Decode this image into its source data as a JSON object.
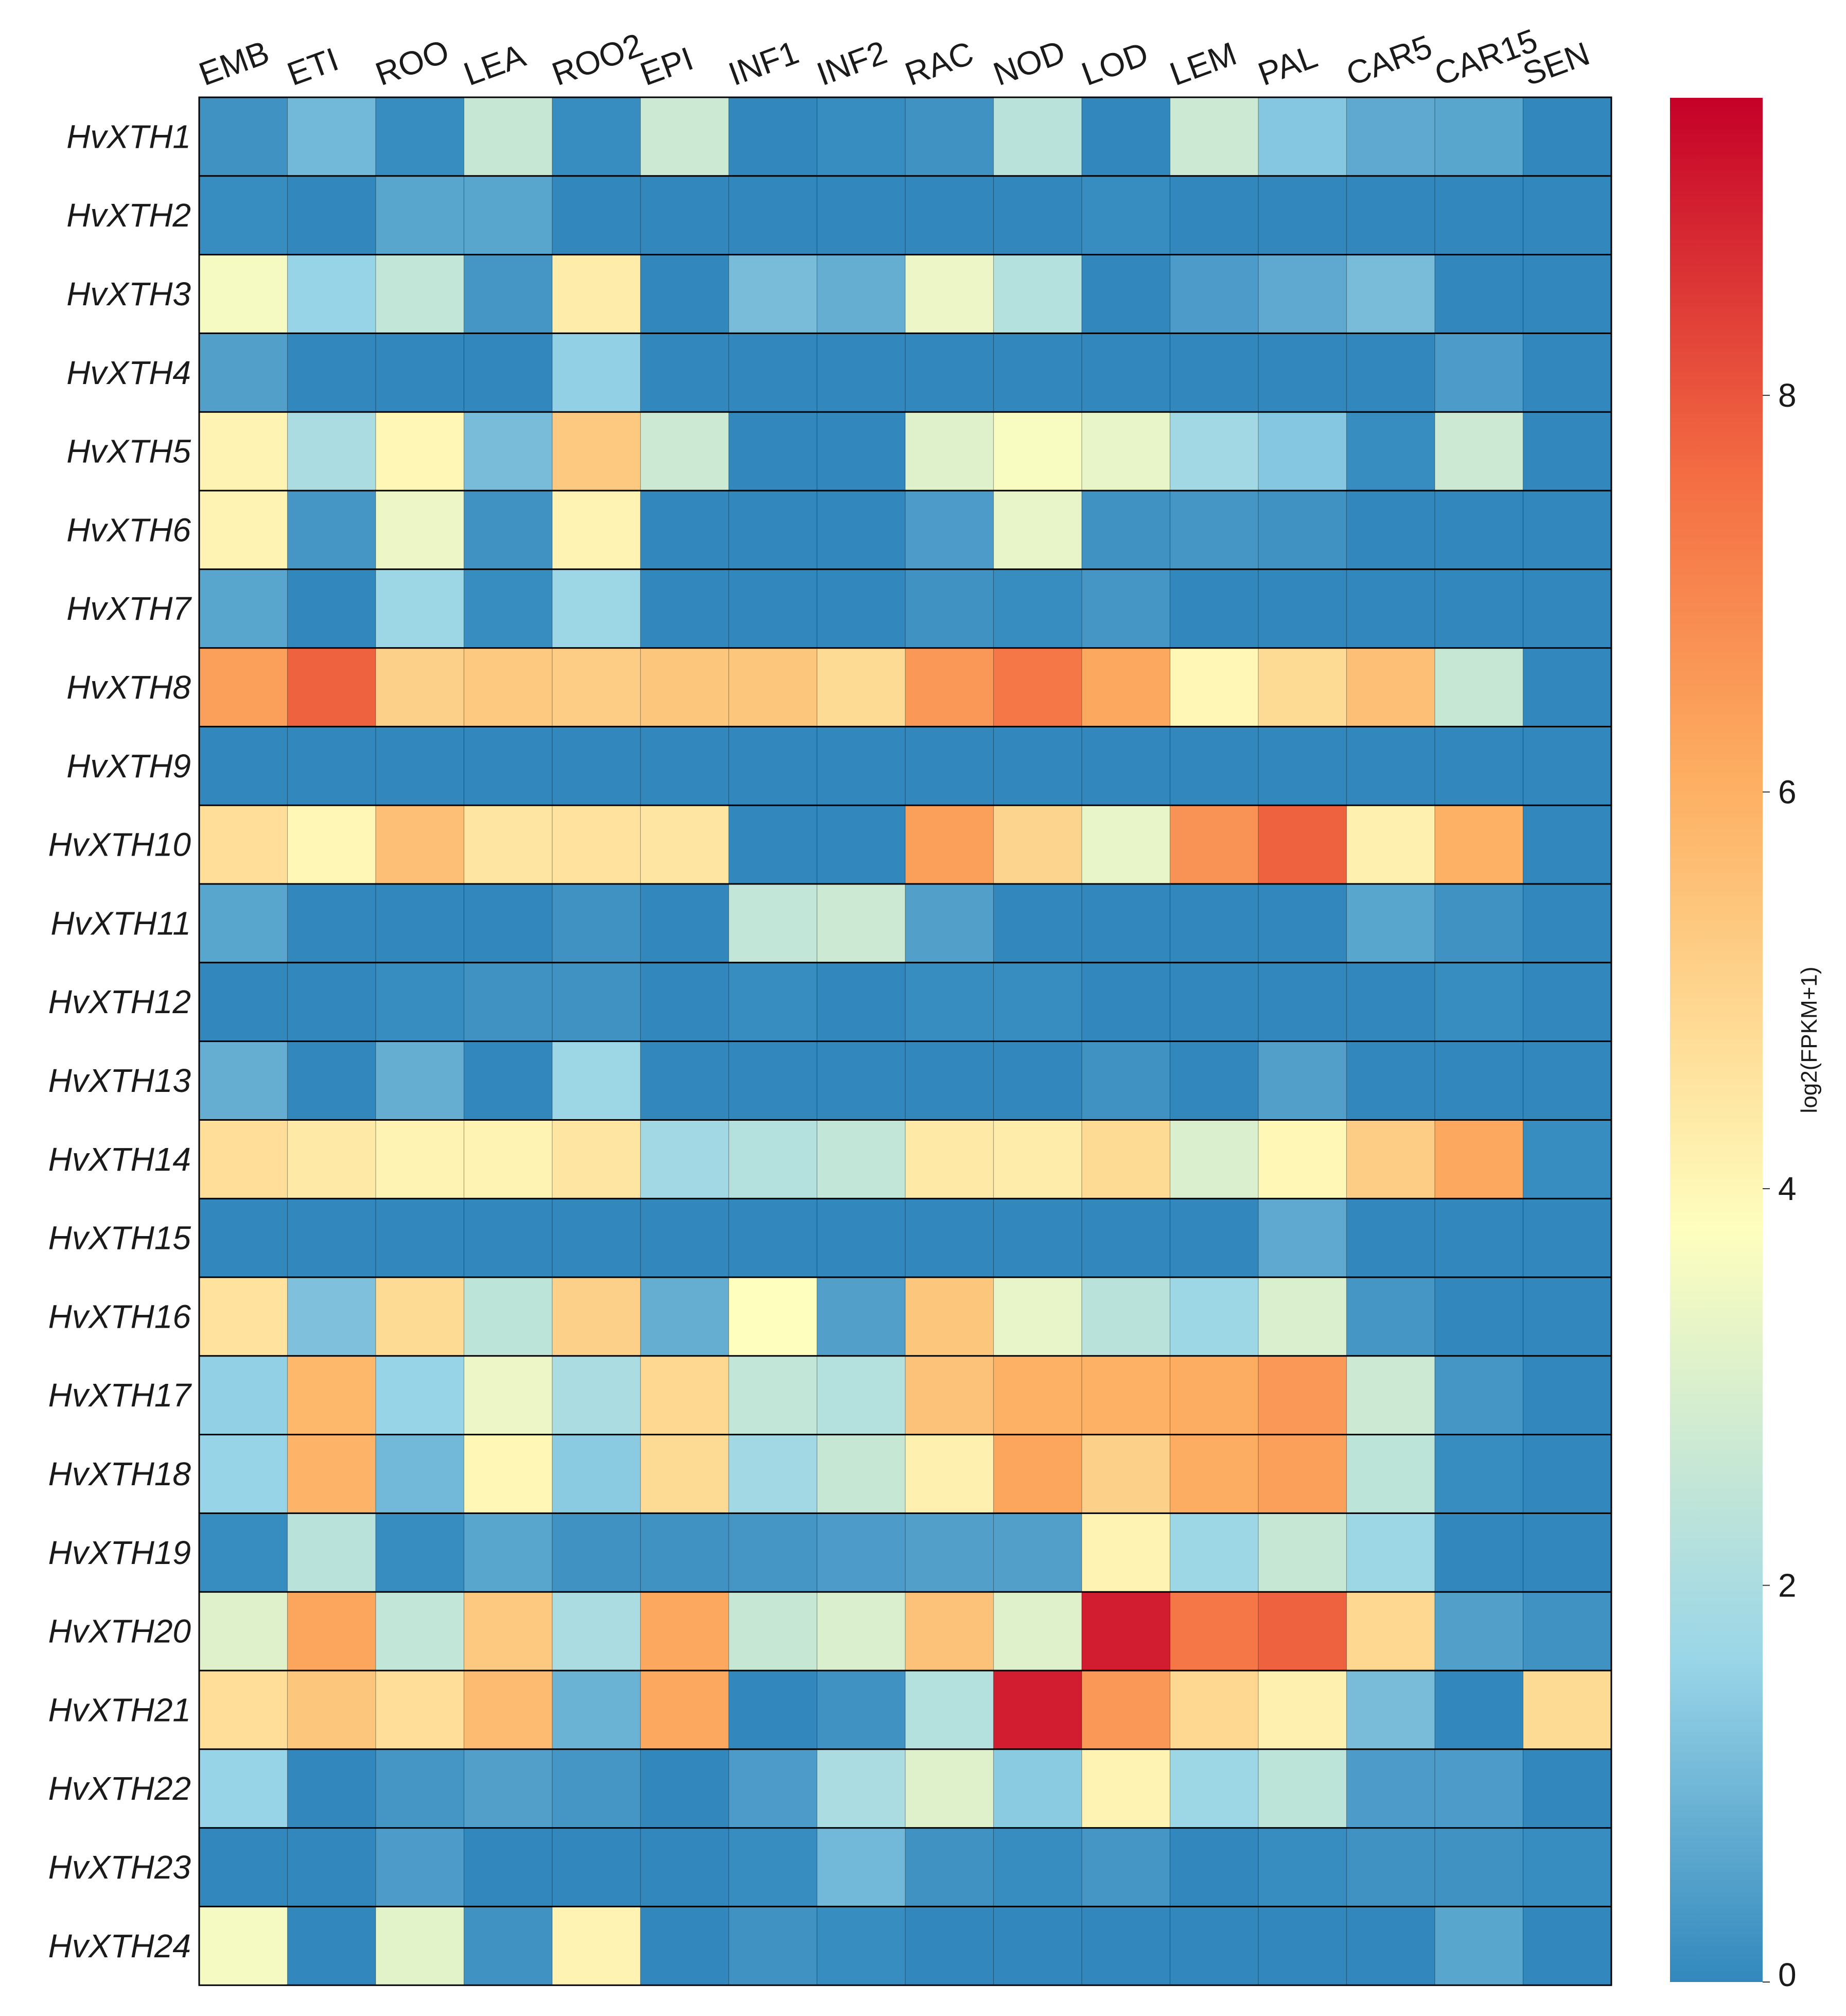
{
  "chart_data": {
    "type": "heatmap",
    "title": "",
    "xlabel": "",
    "ylabel": "",
    "columns": [
      "EMB",
      "ETI",
      "ROO",
      "LEA",
      "ROO2",
      "EPI",
      "INF1",
      "INF2",
      "RAC",
      "NOD",
      "LOD",
      "LEM",
      "PAL",
      "CAR5",
      "CAR15",
      "SEN"
    ],
    "rows": [
      "HvXTH1",
      "HvXTH2",
      "HvXTH3",
      "HvXTH4",
      "HvXTH5",
      "HvXTH6",
      "HvXTH7",
      "HvXTH8",
      "HvXTH9",
      "HvXTH10",
      "HvXTH11",
      "HvXTH12",
      "HvXTH13",
      "HvXTH14",
      "HvXTH15",
      "HvXTH16",
      "HvXTH17",
      "HvXTH18",
      "HvXTH19",
      "HvXTH20",
      "HvXTH21",
      "HvXTH22",
      "HvXTH23",
      "HvXTH24"
    ],
    "values": [
      [
        0.2,
        1.0,
        0.1,
        2.6,
        0.1,
        2.7,
        0.0,
        0.1,
        0.2,
        2.3,
        0.0,
        2.7,
        1.3,
        0.7,
        0.6,
        0.0
      ],
      [
        0.1,
        0.0,
        0.6,
        0.6,
        0.0,
        0.0,
        0.0,
        0.0,
        0.0,
        0.0,
        0.1,
        0.0,
        0.0,
        0.0,
        0.0,
        0.0
      ],
      [
        3.6,
        1.6,
        2.5,
        0.3,
        4.3,
        0.0,
        1.1,
        0.8,
        3.4,
        2.2,
        0.0,
        0.4,
        0.7,
        1.1,
        0.0,
        0.0
      ],
      [
        0.5,
        0.0,
        0.0,
        0.0,
        1.5,
        0.0,
        0.0,
        0.0,
        0.0,
        0.0,
        0.0,
        0.0,
        0.0,
        0.0,
        0.4,
        0.0
      ],
      [
        4.1,
        2.0,
        4.0,
        1.1,
        5.3,
        2.7,
        0.0,
        0.0,
        3.1,
        3.7,
        3.3,
        1.8,
        1.3,
        0.1,
        2.7,
        0.0
      ],
      [
        4.1,
        0.3,
        3.4,
        0.2,
        4.1,
        0.0,
        0.0,
        0.0,
        0.4,
        3.3,
        0.2,
        0.3,
        0.2,
        0.0,
        0.0,
        0.0
      ],
      [
        0.6,
        0.0,
        1.7,
        0.1,
        1.7,
        0.0,
        0.0,
        0.0,
        0.2,
        0.1,
        0.3,
        0.0,
        0.0,
        0.0,
        0.0,
        0.0
      ],
      [
        6.4,
        7.8,
        5.1,
        5.3,
        5.2,
        5.4,
        5.4,
        4.8,
        6.6,
        7.4,
        6.2,
        4.0,
        4.8,
        5.6,
        2.6,
        0.0
      ],
      [
        0.0,
        0.0,
        0.0,
        0.0,
        0.0,
        0.0,
        0.0,
        0.0,
        0.0,
        0.0,
        0.0,
        0.0,
        0.0,
        0.0,
        0.0,
        0.0
      ],
      [
        4.7,
        4.0,
        5.6,
        4.5,
        4.6,
        4.5,
        0.0,
        0.0,
        6.4,
        5.0,
        3.3,
        6.7,
        7.8,
        4.2,
        6.0,
        0.0
      ],
      [
        0.6,
        0.0,
        0.0,
        0.0,
        0.2,
        0.0,
        2.5,
        2.7,
        0.5,
        0.0,
        0.0,
        0.0,
        0.0,
        0.6,
        0.2,
        0.0
      ],
      [
        0.0,
        0.0,
        0.1,
        0.2,
        0.2,
        0.0,
        0.1,
        0.0,
        0.1,
        0.1,
        0.0,
        0.0,
        0.0,
        0.0,
        0.1,
        0.0
      ],
      [
        0.8,
        0.0,
        0.8,
        0.0,
        1.7,
        0.0,
        0.0,
        0.0,
        0.0,
        0.0,
        0.2,
        0.0,
        0.5,
        0.0,
        0.0,
        0.0
      ],
      [
        4.7,
        4.4,
        4.1,
        4.1,
        4.5,
        1.8,
        2.2,
        2.5,
        4.4,
        4.3,
        4.8,
        3.0,
        4.0,
        5.2,
        6.2,
        0.1
      ],
      [
        0.0,
        0.0,
        0.0,
        0.0,
        0.0,
        0.0,
        0.0,
        0.0,
        0.0,
        0.0,
        0.0,
        0.0,
        0.7,
        0.0,
        0.0,
        0.0
      ],
      [
        4.6,
        1.2,
        4.8,
        2.4,
        5.1,
        0.8,
        3.8,
        0.5,
        5.4,
        3.3,
        2.3,
        1.7,
        3.0,
        0.3,
        0.0,
        0.0
      ],
      [
        1.5,
        5.8,
        1.6,
        3.4,
        2.0,
        4.9,
        2.5,
        2.2,
        5.5,
        6.0,
        6.0,
        6.1,
        6.6,
        2.7,
        0.3,
        0.0
      ],
      [
        1.6,
        5.9,
        1.0,
        4.0,
        1.4,
        4.8,
        1.8,
        2.6,
        4.2,
        6.3,
        5.1,
        6.1,
        6.4,
        2.4,
        0.1,
        0.0
      ],
      [
        0.1,
        2.3,
        0.1,
        0.6,
        0.2,
        0.2,
        0.3,
        0.4,
        0.5,
        0.5,
        4.1,
        1.7,
        2.6,
        1.7,
        0.0,
        0.0
      ],
      [
        3.1,
        6.3,
        2.5,
        5.3,
        2.0,
        6.2,
        2.6,
        3.0,
        5.5,
        3.1,
        9.0,
        7.4,
        7.8,
        4.9,
        0.5,
        0.2
      ],
      [
        4.7,
        5.4,
        4.7,
        5.7,
        0.9,
        6.2,
        0.0,
        0.2,
        2.2,
        9.0,
        6.6,
        4.9,
        4.2,
        1.1,
        0.0,
        4.8
      ],
      [
        1.6,
        0.0,
        0.3,
        0.5,
        0.3,
        0.0,
        0.4,
        2.0,
        3.1,
        1.4,
        4.1,
        1.7,
        2.4,
        0.4,
        0.4,
        0.0
      ],
      [
        0.0,
        0.0,
        0.4,
        0.0,
        0.0,
        0.0,
        0.1,
        1.0,
        0.2,
        0.1,
        0.3,
        0.0,
        0.1,
        0.2,
        0.2,
        0.1
      ],
      [
        3.6,
        0.0,
        3.2,
        0.2,
        4.1,
        0.0,
        0.2,
        0.1,
        0.0,
        0.0,
        0.0,
        0.0,
        0.0,
        0.0,
        0.6,
        0.0
      ]
    ],
    "colorbar": {
      "label": "log2(FPKM+1)",
      "range": [
        0,
        9.5
      ],
      "ticks": [
        0,
        2,
        4,
        6,
        8
      ],
      "tick_labels": [
        "0",
        "2",
        "4",
        "6",
        "8"
      ],
      "colormap": [
        "#3288bd",
        "#99d5e8",
        "#fefebe",
        "#fdae61",
        "#f46d43",
        "#c50028"
      ],
      "colormap_stops": [
        0,
        0.17,
        0.4,
        0.64,
        0.8,
        1.0
      ]
    },
    "grid": true,
    "legend": "right"
  }
}
